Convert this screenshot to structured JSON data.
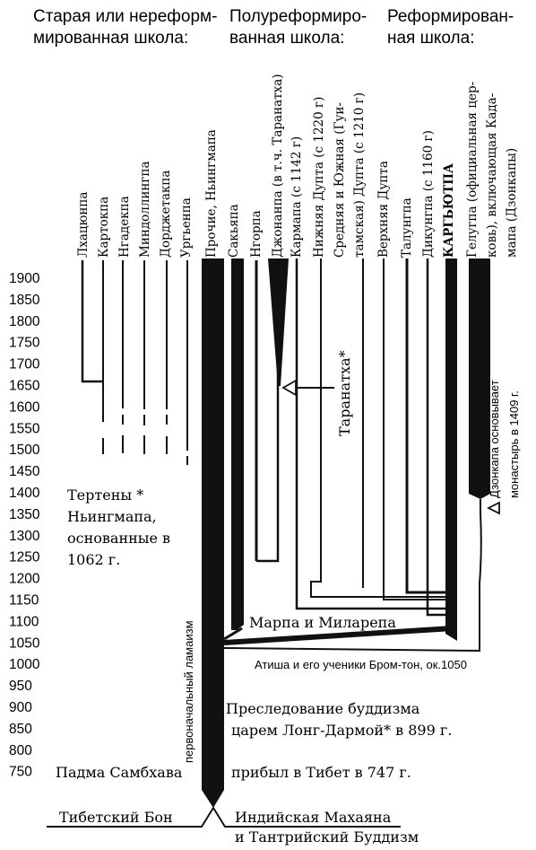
{
  "headers": [
    {
      "line1": "Старая или нереформ-",
      "line2": "мированная школа:"
    },
    {
      "line1": "Полуреформиро-",
      "line2": "ванная школа:"
    },
    {
      "line1": "Реформирован-",
      "line2": "ная школа:"
    }
  ],
  "schools": [
    "Лхацюнпа",
    "Картокпа",
    "Нгадекпа",
    "Миндоллингпа",
    "Дорджетакпа",
    "Ургьенпа",
    "Прочие, Ньингмапа",
    "Сакьяпа",
    "Нгорпа",
    "Джонанпа (в т.ч. Таранатха)",
    "Кармапа (с 1142 г)",
    "Нижняя Дупта (с 1220 г)",
    "Средняя и Южная (Гуи-",
    "тамская) Дупта (с 1210 г)",
    "Верхняя Дупта",
    "Талунгпа",
    "Дикунгпа (с 1160 г)",
    "КАРГЬЮТПА",
    "Гелугпа (официальная цер-",
    "ковь), включающая Када-",
    "мапа (Дзонкапы)"
  ],
  "years": [
    "1900",
    "1850",
    "1800",
    "1750",
    "1700",
    "1650",
    "1600",
    "1550",
    "1500",
    "1450",
    "1400",
    "1350",
    "1300",
    "1250",
    "1200",
    "1150",
    "1100",
    "1050",
    "1000",
    "950",
    "900",
    "850",
    "800",
    "750"
  ],
  "notes": {
    "tertons": [
      "Тертены *",
      "Ньингмапа,",
      "основанные в",
      "1062 г."
    ],
    "taranatha": "Таранатха*",
    "tsongkhapa": [
      "Дзонкапа основывает",
      "монастырь в 1409 г."
    ],
    "marpa": "Марпа и Миларепа",
    "atisha": "Атиша и его ученики Бром-тон, ок.1050",
    "persecution": [
      "Преследование буддизма",
      "царем Лонг-Дармой* в 899 г."
    ],
    "padma": "Падма Самбхава",
    "arrival": "прибыл в Тибет в 747 г.",
    "early_lamaism": "первоначальный ламаизм",
    "bon": "Тибетский Бон",
    "mahayana": [
      "Индийская Махаяна",
      "и Тантрийский Буддизм"
    ]
  }
}
